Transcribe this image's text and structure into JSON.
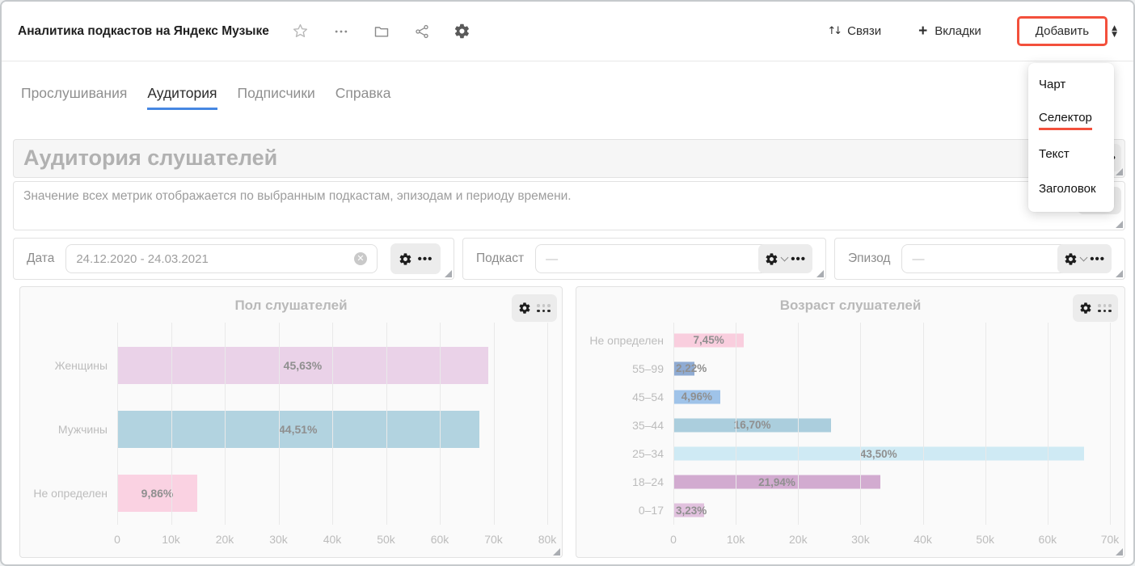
{
  "header": {
    "title": "Аналитика подкастов на Яндекс Музыке",
    "icon_names": [
      "star-icon",
      "more-dots-icon",
      "folder-icon",
      "share-icon",
      "gear-icon"
    ],
    "links": {
      "relations": "Связи",
      "tabs": "Вкладки",
      "add": "Добавить"
    },
    "annotation_color": "#f3503c"
  },
  "add_menu": {
    "items": [
      {
        "label": "Чарт",
        "highlighted": false
      },
      {
        "label": "Селектор",
        "highlighted": true
      },
      {
        "label": "Текст",
        "highlighted": false
      },
      {
        "label": "Заголовок",
        "highlighted": false
      }
    ],
    "highlight_color": "#f3503c"
  },
  "nav_tabs": {
    "active_color": "#4687e2",
    "items": [
      {
        "label": "Прослушивания",
        "active": false
      },
      {
        "label": "Аудитория",
        "active": true
      },
      {
        "label": "Подписчики",
        "active": false
      },
      {
        "label": "Справка",
        "active": false
      }
    ]
  },
  "title_block": {
    "text": "Аудитория слушателей"
  },
  "text_block": {
    "text": "Значение всех метрик отображается по выбранным подкастам, эпизодам и периоду времени."
  },
  "filters": {
    "date": {
      "label": "Дата",
      "value": "24.12.2020 - 24.03.2021"
    },
    "podcast": {
      "label": "Подкаст",
      "value": "—"
    },
    "episode": {
      "label": "Эпизод",
      "value": "—"
    }
  },
  "chart_data": [
    {
      "type": "bar",
      "orientation": "horizontal",
      "title": "Пол слушателей",
      "xlabel": "",
      "ylabel": "",
      "axis": {
        "max_k": 80,
        "ticks": [
          "0",
          "10k",
          "20k",
          "30k",
          "40k",
          "50k",
          "60k",
          "70k",
          "80k"
        ],
        "grid": true
      },
      "bars": [
        {
          "category": "Женщины",
          "percent_label": "45,63%",
          "value_k": 69.0,
          "color": "#ead2e8"
        },
        {
          "category": "Мужчины",
          "percent_label": "44,51%",
          "value_k": 67.3,
          "color": "#b2d3e0"
        },
        {
          "category": "Не определен",
          "percent_label": "9,86%",
          "value_k": 14.9,
          "color": "#fad2e2"
        }
      ]
    },
    {
      "type": "bar",
      "orientation": "horizontal",
      "title": "Возраст слушателей",
      "xlabel": "",
      "ylabel": "",
      "axis": {
        "max_k": 70,
        "ticks": [
          "0",
          "10k",
          "20k",
          "30k",
          "40k",
          "50k",
          "60k",
          "70k"
        ],
        "grid": true
      },
      "bars": [
        {
          "category": "Не определен",
          "percent_label": "7,45%",
          "value_k": 11.3,
          "color": "#f9cede"
        },
        {
          "category": "55–99",
          "percent_label": "2,22%",
          "value_k": 3.4,
          "color": "#8fabd3"
        },
        {
          "category": "45–54",
          "percent_label": "4,96%",
          "value_k": 7.5,
          "color": "#9fc3e9"
        },
        {
          "category": "35–44",
          "percent_label": "16,70%",
          "value_k": 25.3,
          "color": "#abcedd"
        },
        {
          "category": "25–34",
          "percent_label": "43,50%",
          "value_k": 65.8,
          "color": "#cfeaf4"
        },
        {
          "category": "18–24",
          "percent_label": "21,94%",
          "value_k": 33.2,
          "color": "#d2abd0"
        },
        {
          "category": "0–17",
          "percent_label": "3,23%",
          "value_k": 4.9,
          "color": "#e1c1de"
        }
      ]
    }
  ]
}
